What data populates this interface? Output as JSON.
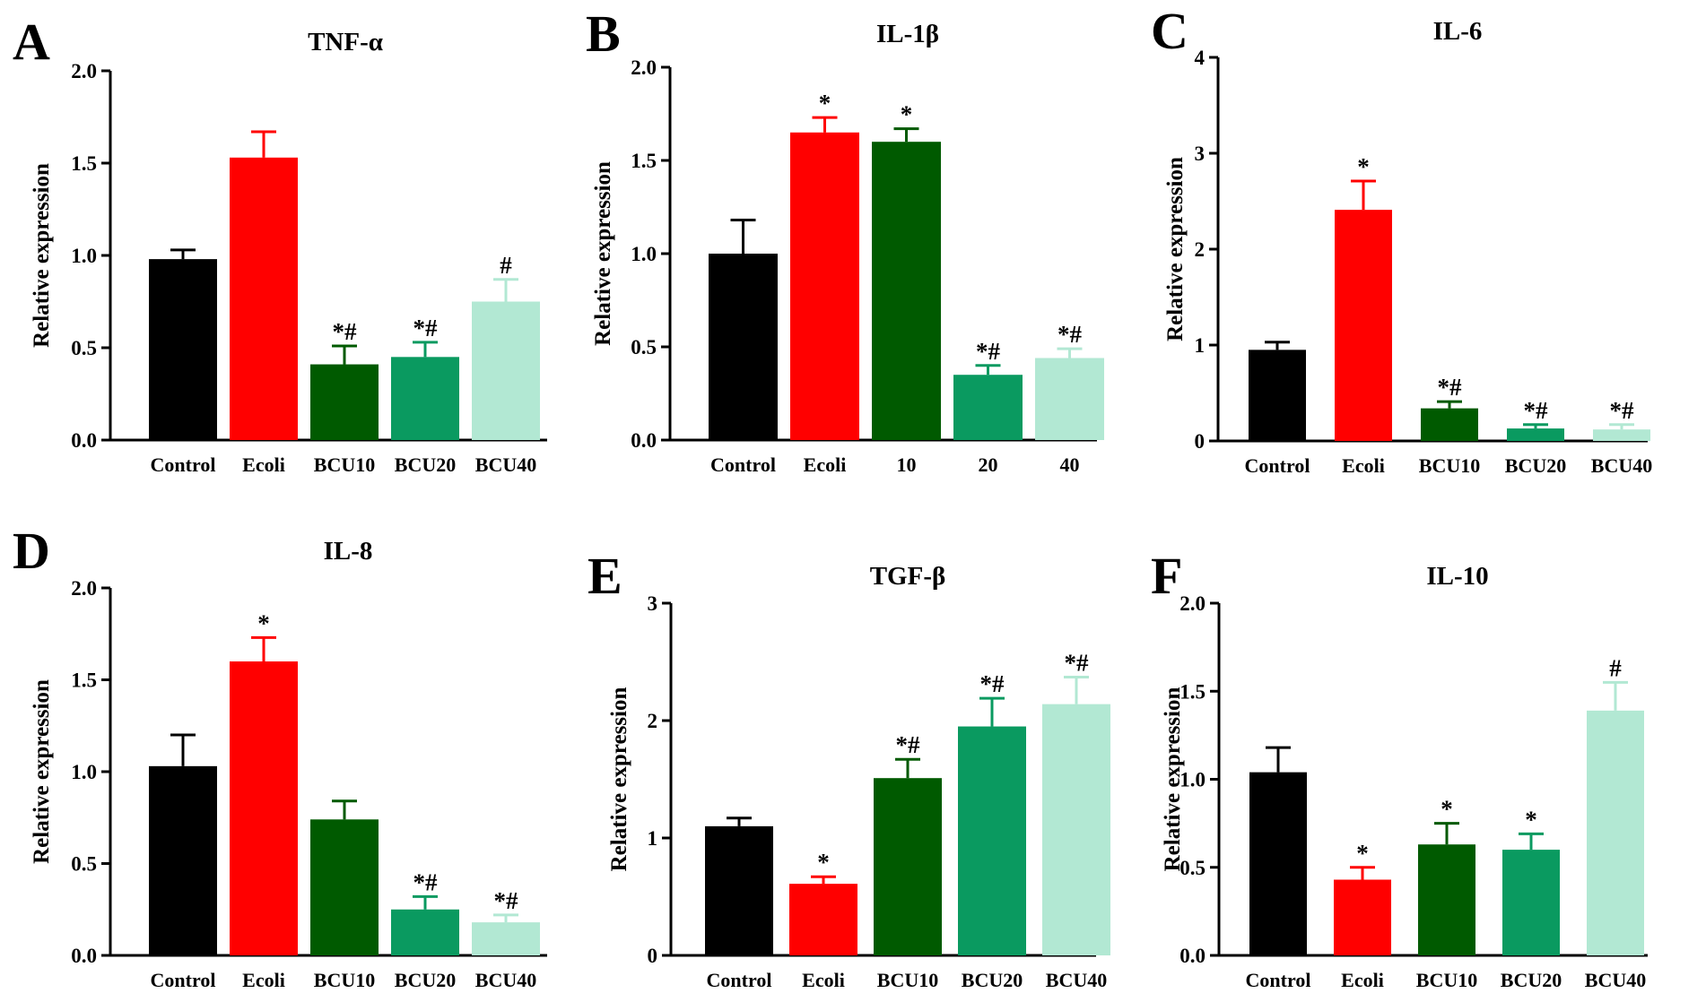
{
  "colors": {
    "Control": "#000000",
    "Ecoli": "#ff0000",
    "BCU10": "#005a00",
    "BCU20": "#0a9a60",
    "BCU40": "#b2e8d3"
  },
  "chart_data": [
    {
      "type": "bar",
      "panel": "A",
      "title": "TNF-α",
      "xlabel": "",
      "ylabel": "Relative expression",
      "ylim": [
        0,
        2.0
      ],
      "yticks": [
        "0.0",
        "0.5",
        "1.0",
        "1.5",
        "2.0"
      ],
      "categories": [
        "Control",
        "Ecoli",
        "BCU10",
        "BCU20",
        "BCU40"
      ],
      "values": [
        0.98,
        1.53,
        0.41,
        0.45,
        0.75
      ],
      "errors": [
        0.05,
        0.14,
        0.1,
        0.08,
        0.12
      ],
      "annotations": [
        "",
        "",
        "*#",
        "*#",
        "#"
      ]
    },
    {
      "type": "bar",
      "panel": "B",
      "title": "IL-1β",
      "xlabel": "",
      "ylabel": "Relative expression",
      "ylim": [
        0,
        2.0
      ],
      "yticks": [
        "0.0",
        "0.5",
        "1.0",
        "1.5",
        "2.0"
      ],
      "categories": [
        "Control",
        "Ecoli",
        "10",
        "20",
        "40"
      ],
      "values": [
        1.0,
        1.65,
        1.6,
        0.35,
        0.44
      ],
      "errors": [
        0.18,
        0.08,
        0.07,
        0.05,
        0.05
      ],
      "annotations": [
        "",
        "*",
        "*",
        "*#",
        "*#"
      ]
    },
    {
      "type": "bar",
      "panel": "C",
      "title": "IL-6",
      "xlabel": "",
      "ylabel": "Relative expression",
      "ylim": [
        0,
        4
      ],
      "yticks": [
        "0",
        "1",
        "2",
        "3",
        "4"
      ],
      "categories": [
        "Control",
        "Ecoli",
        "BCU10",
        "BCU20",
        "BCU40"
      ],
      "values": [
        0.95,
        2.41,
        0.34,
        0.13,
        0.12
      ],
      "errors": [
        0.08,
        0.3,
        0.07,
        0.04,
        0.05
      ],
      "annotations": [
        "",
        "*",
        "*#",
        "*#",
        "*#"
      ]
    },
    {
      "type": "bar",
      "panel": "D",
      "title": "IL-8",
      "xlabel": "",
      "ylabel": "Relative expression",
      "ylim": [
        0,
        2.0
      ],
      "yticks": [
        "0.0",
        "0.5",
        "1.0",
        "1.5",
        "2.0"
      ],
      "categories": [
        "Control",
        "Ecoli",
        "BCU10",
        "BCU20",
        "BCU40"
      ],
      "values": [
        1.03,
        1.6,
        0.74,
        0.25,
        0.18
      ],
      "errors": [
        0.17,
        0.13,
        0.1,
        0.07,
        0.04
      ],
      "annotations": [
        "",
        "*",
        "",
        "*#",
        "*#"
      ]
    },
    {
      "type": "bar",
      "panel": "E",
      "title": "TGF-β",
      "xlabel": "",
      "ylabel": "Relative expression",
      "ylim": [
        0,
        3
      ],
      "yticks": [
        "0",
        "1",
        "2",
        "3"
      ],
      "categories": [
        "Control",
        "Ecoli",
        "BCU10",
        "BCU20",
        "BCU40"
      ],
      "values": [
        1.1,
        0.61,
        1.51,
        1.95,
        2.14
      ],
      "errors": [
        0.07,
        0.06,
        0.16,
        0.24,
        0.23
      ],
      "annotations": [
        "",
        "*",
        "*#",
        "*#",
        "*#"
      ]
    },
    {
      "type": "bar",
      "panel": "F",
      "title": "IL-10",
      "xlabel": "",
      "ylabel": "Relative expression",
      "ylim": [
        0,
        2.0
      ],
      "yticks": [
        "0.0",
        "0.5",
        "1.0",
        "1.5",
        "2.0"
      ],
      "categories": [
        "Control",
        "Ecoli",
        "BCU10",
        "BCU20",
        "BCU40"
      ],
      "values": [
        1.04,
        0.43,
        0.63,
        0.6,
        1.39
      ],
      "errors": [
        0.14,
        0.07,
        0.12,
        0.09,
        0.16
      ],
      "annotations": [
        "",
        "*",
        "*",
        "*",
        "#"
      ]
    }
  ]
}
